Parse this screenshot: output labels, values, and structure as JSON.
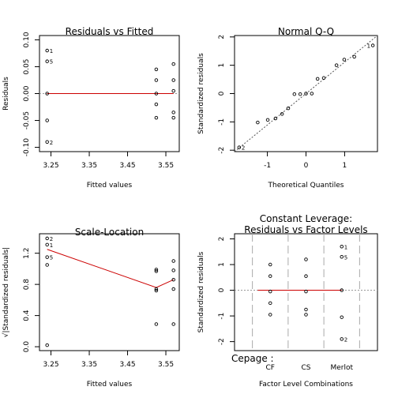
{
  "chart_data": [
    {
      "type": "scatter",
      "title": "Residuals vs Fitted",
      "xlabel": "Fitted values",
      "ylabel": "Residuals",
      "xlim": [
        3.22,
        3.585
      ],
      "ylim": [
        -0.108,
        0.108
      ],
      "xticks": [
        3.25,
        3.35,
        3.45,
        3.55
      ],
      "xtick_labels": [
        "3.25",
        "3.35",
        "3.45",
        "3.55"
      ],
      "yticks": [
        -0.1,
        -0.05,
        0.0,
        0.05,
        0.1
      ],
      "ytick_labels": [
        "-0.10",
        "-0.05",
        "0.00",
        "0.05",
        "0.10"
      ],
      "points": [
        {
          "x": 3.24,
          "y": 0.08,
          "label": "1"
        },
        {
          "x": 3.24,
          "y": 0.06,
          "label": "5"
        },
        {
          "x": 3.24,
          "y": 0.0,
          "label": ""
        },
        {
          "x": 3.24,
          "y": -0.05,
          "label": ""
        },
        {
          "x": 3.24,
          "y": -0.09,
          "label": "2"
        },
        {
          "x": 3.525,
          "y": 0.045,
          "label": ""
        },
        {
          "x": 3.525,
          "y": 0.025,
          "label": ""
        },
        {
          "x": 3.525,
          "y": 0.0,
          "label": ""
        },
        {
          "x": 3.525,
          "y": -0.02,
          "label": ""
        },
        {
          "x": 3.525,
          "y": -0.045,
          "label": ""
        },
        {
          "x": 3.57,
          "y": 0.055,
          "label": ""
        },
        {
          "x": 3.57,
          "y": 0.025,
          "label": ""
        },
        {
          "x": 3.57,
          "y": 0.005,
          "label": ""
        },
        {
          "x": 3.57,
          "y": -0.035,
          "label": ""
        },
        {
          "x": 3.57,
          "y": -0.045,
          "label": ""
        }
      ],
      "smooth_line": [
        [
          3.24,
          0.0
        ],
        [
          3.525,
          0.0
        ],
        [
          3.57,
          0.0
        ]
      ],
      "reference_line_y": 0,
      "line_color": "#cc0000"
    },
    {
      "type": "scatter",
      "title": "Normal Q-Q",
      "xlabel": "Theoretical Quantiles",
      "ylabel": "Standardized residuals",
      "xlim": [
        -1.85,
        1.85
      ],
      "ylim": [
        -2.05,
        2.05
      ],
      "xticks": [
        -1,
        0,
        1
      ],
      "xtick_labels": [
        "-1",
        "0",
        "1"
      ],
      "yticks": [
        -2,
        -1,
        0,
        1,
        2
      ],
      "ytick_labels": [
        "-2",
        "-1",
        "0",
        "1",
        "2"
      ],
      "points": [
        {
          "x": -1.73,
          "y": -1.9,
          "label": "2"
        },
        {
          "x": -1.25,
          "y": -1.02,
          "label": ""
        },
        {
          "x": -0.99,
          "y": -0.93,
          "label": ""
        },
        {
          "x": -0.79,
          "y": -0.88,
          "label": ""
        },
        {
          "x": -0.62,
          "y": -0.72,
          "label": ""
        },
        {
          "x": -0.46,
          "y": -0.52,
          "label": ""
        },
        {
          "x": -0.3,
          "y": -0.02,
          "label": ""
        },
        {
          "x": -0.15,
          "y": -0.02,
          "label": ""
        },
        {
          "x": 0.0,
          "y": 0.0,
          "label": ""
        },
        {
          "x": 0.15,
          "y": 0.0,
          "label": ""
        },
        {
          "x": 0.3,
          "y": 0.52,
          "label": ""
        },
        {
          "x": 0.46,
          "y": 0.55,
          "label": ""
        },
        {
          "x": 0.79,
          "y": 1.0,
          "label": ""
        },
        {
          "x": 0.99,
          "y": 1.2,
          "label": ""
        },
        {
          "x": 1.25,
          "y": 1.3,
          "label": ""
        },
        {
          "x": 1.73,
          "y": 1.7,
          "label": "1"
        }
      ],
      "reference_line": [
        [
          -1.85,
          -2.05
        ],
        [
          1.85,
          2.05
        ]
      ]
    },
    {
      "type": "scatter",
      "title": "Scale-Location",
      "xlabel": "Fitted values",
      "ylabel": "√|Standardized residuals|",
      "xlim": [
        3.22,
        3.585
      ],
      "ylim": [
        -0.05,
        1.45
      ],
      "xticks": [
        3.25,
        3.35,
        3.45,
        3.55
      ],
      "xtick_labels": [
        "3.25",
        "3.35",
        "3.45",
        "3.55"
      ],
      "yticks": [
        0.0,
        0.4,
        0.8,
        1.2
      ],
      "ytick_labels": [
        "0.0",
        "0.4",
        "0.8",
        "1.2"
      ],
      "points": [
        {
          "x": 3.24,
          "y": 1.39,
          "label": "2"
        },
        {
          "x": 3.24,
          "y": 1.31,
          "label": "1"
        },
        {
          "x": 3.24,
          "y": 1.15,
          "label": "5"
        },
        {
          "x": 3.24,
          "y": 1.05,
          "label": ""
        },
        {
          "x": 3.24,
          "y": 0.02,
          "label": ""
        },
        {
          "x": 3.525,
          "y": 0.99,
          "label": ""
        },
        {
          "x": 3.525,
          "y": 0.97,
          "label": ""
        },
        {
          "x": 3.525,
          "y": 0.74,
          "label": ""
        },
        {
          "x": 3.525,
          "y": 0.72,
          "label": ""
        },
        {
          "x": 3.525,
          "y": 0.29,
          "label": ""
        },
        {
          "x": 3.57,
          "y": 1.1,
          "label": ""
        },
        {
          "x": 3.57,
          "y": 0.98,
          "label": ""
        },
        {
          "x": 3.57,
          "y": 0.86,
          "label": ""
        },
        {
          "x": 3.57,
          "y": 0.74,
          "label": ""
        },
        {
          "x": 3.57,
          "y": 0.29,
          "label": ""
        }
      ],
      "smooth_line": [
        [
          3.24,
          1.25
        ],
        [
          3.525,
          0.76
        ],
        [
          3.57,
          0.86
        ]
      ],
      "line_color": "#cc0000"
    },
    {
      "type": "scatter",
      "title": "Constant Leverage:",
      "subtitle": "Residuals vs Factor Levels",
      "xlabel": "Factor Level Combinations",
      "ylabel": "Standardized residuals",
      "factor_label": "Cepage :",
      "categories": [
        "CF",
        "CS",
        "Merlot"
      ],
      "ylim": [
        -2.35,
        2.2
      ],
      "yticks": [
        -2,
        -1,
        0,
        1,
        2
      ],
      "ytick_labels": [
        "-2",
        "-1",
        "0",
        "1",
        "2"
      ],
      "points": [
        {
          "category": "CF",
          "y": 1.0,
          "label": ""
        },
        {
          "category": "CF",
          "y": 0.55,
          "label": ""
        },
        {
          "category": "CF",
          "y": -0.05,
          "label": ""
        },
        {
          "category": "CF",
          "y": -0.5,
          "label": ""
        },
        {
          "category": "CF",
          "y": -0.95,
          "label": ""
        },
        {
          "category": "CS",
          "y": 1.2,
          "label": ""
        },
        {
          "category": "CS",
          "y": 0.55,
          "label": ""
        },
        {
          "category": "CS",
          "y": -0.05,
          "label": ""
        },
        {
          "category": "CS",
          "y": -0.75,
          "label": ""
        },
        {
          "category": "CS",
          "y": -0.95,
          "label": ""
        },
        {
          "category": "Merlot",
          "y": 1.7,
          "label": "1"
        },
        {
          "category": "Merlot",
          "y": 1.3,
          "label": "5"
        },
        {
          "category": "Merlot",
          "y": 0.0,
          "label": ""
        },
        {
          "category": "Merlot",
          "y": -1.05,
          "label": ""
        },
        {
          "category": "Merlot",
          "y": -1.9,
          "label": "2"
        }
      ],
      "reference_line_y": 0,
      "line_color": "#cc0000"
    }
  ]
}
